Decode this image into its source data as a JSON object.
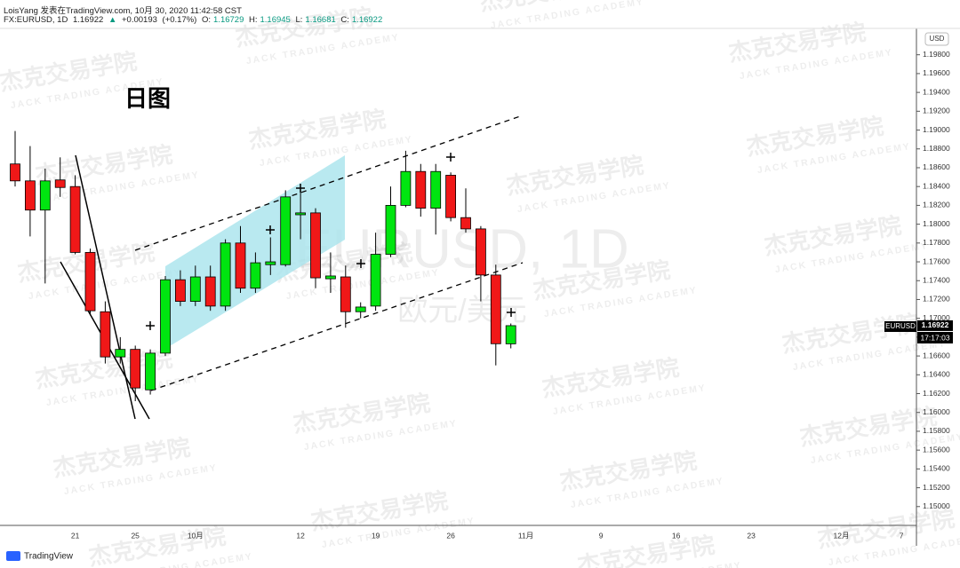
{
  "header": {
    "author_line": "LoisYang 发表在TradingView.com, 10月 30, 2020 11:42:58 CST",
    "symbol": "FX:EURUSD, 1D",
    "change": "+0.00193",
    "change_pct": "(+0.17%)",
    "o": "O:",
    "h": "H:",
    "l": "L:",
    "c": "C:"
  },
  "watermark_cn": "杰克交易学院",
  "watermark_en": "JACK TRADING ACADEMY",
  "brand": "TradingView",
  "currency": "USD",
  "price_tag_symbol": "EURUSD",
  "countdown": "17:17:03",
  "chart_data": {
    "type": "candlestick",
    "symbol_watermark": "EURUSD, 1D",
    "symbol_description": "欧元/美元",
    "annotation": "日图",
    "categories": [
      null,
      null,
      null,
      null,
      "21",
      null,
      null,
      null,
      "25",
      null,
      null,
      null,
      "10月",
      null,
      null,
      null,
      null,
      null,
      null,
      "12",
      null,
      null,
      null,
      null,
      "19",
      null,
      null,
      null,
      null,
      "26",
      null,
      null,
      null,
      null,
      "11月",
      null,
      null,
      null,
      null,
      "9",
      null,
      null,
      null,
      null,
      "16",
      null,
      null,
      null,
      null,
      "23",
      null,
      null,
      null,
      null,
      null,
      "12月",
      null,
      null,
      null,
      "7"
    ],
    "open": [
      1.1864,
      1.1846,
      1.1815,
      1.1847,
      1.184,
      1.177,
      1.1707,
      1.1659,
      1.1667,
      1.1624,
      1.1663,
      1.1741,
      1.1718,
      1.1744,
      1.1713,
      1.178,
      1.1732,
      1.1757,
      1.1757,
      1.181,
      1.1812,
      1.1742,
      1.1744,
      1.1707,
      1.1713,
      1.1768,
      1.182,
      1.1856,
      1.1817,
      1.1852,
      1.1807,
      1.1795,
      1.1746,
      1.16729,
      null,
      null,
      null,
      null,
      null,
      null,
      null,
      null,
      null,
      null,
      null,
      null,
      null,
      null,
      null,
      null,
      null,
      null,
      null,
      null,
      null,
      null,
      null,
      null,
      null,
      null
    ],
    "high": [
      1.1899,
      1.1883,
      1.1859,
      1.1871,
      1.1852,
      1.1774,
      1.1718,
      1.168,
      1.1671,
      1.1667,
      1.1745,
      1.1751,
      1.1756,
      1.1756,
      1.1784,
      1.1798,
      1.177,
      1.1786,
      1.1836,
      1.1836,
      1.1817,
      1.177,
      1.1756,
      1.1717,
      1.1791,
      1.184,
      1.1878,
      1.1864,
      1.1864,
      1.1855,
      1.1838,
      1.1798,
      1.1757,
      1.16945,
      null,
      null,
      null,
      null,
      null,
      null,
      null,
      null,
      null,
      null,
      null,
      null,
      null,
      null,
      null,
      null,
      null,
      null,
      null,
      null,
      null,
      null,
      null,
      null,
      null,
      null
    ],
    "low": [
      1.184,
      1.1787,
      1.1737,
      1.1829,
      1.1768,
      1.1704,
      1.1652,
      1.1652,
      1.1612,
      1.1619,
      1.166,
      1.1713,
      1.1713,
      1.1708,
      1.1708,
      1.1727,
      1.1727,
      1.1746,
      1.1755,
      1.1784,
      1.1732,
      1.1727,
      1.169,
      1.17,
      1.1708,
      1.1765,
      1.1818,
      1.1808,
      1.1789,
      1.1803,
      1.1791,
      1.1718,
      1.165,
      1.16681,
      null,
      null,
      null,
      null,
      null,
      null,
      null,
      null,
      null,
      null,
      null,
      null,
      null,
      null,
      null,
      null,
      null,
      null,
      null,
      null,
      null,
      null,
      null,
      null,
      null,
      null
    ],
    "close": [
      1.1846,
      1.1815,
      1.1846,
      1.1839,
      1.177,
      1.1708,
      1.1659,
      1.1667,
      1.1626,
      1.1663,
      1.1741,
      1.1718,
      1.1744,
      1.1713,
      1.178,
      1.1732,
      1.1759,
      1.176,
      1.1829,
      1.1812,
      1.1743,
      1.1745,
      1.1707,
      1.1712,
      1.1768,
      1.182,
      1.1856,
      1.1817,
      1.1856,
      1.1807,
      1.1795,
      1.1746,
      1.1673,
      1.16922,
      null,
      null,
      null,
      null,
      null,
      null,
      null,
      null,
      null,
      null,
      null,
      null,
      null,
      null,
      null,
      null,
      null,
      null,
      null,
      null,
      null,
      null,
      null,
      null,
      null,
      null
    ],
    "up_color": "#00e510",
    "down_color": "#f01818",
    "grid": false,
    "ylim": [
      1.148,
      1.2008
    ],
    "yticks": [
      {
        "value": 1.15,
        "label": "1.15000"
      },
      {
        "value": 1.152,
        "label": "1.15200"
      },
      {
        "value": 1.154,
        "label": "1.15400"
      },
      {
        "value": 1.156,
        "label": "1.15600"
      },
      {
        "value": 1.158,
        "label": "1.15800"
      },
      {
        "value": 1.16,
        "label": "1.16000"
      },
      {
        "value": 1.162,
        "label": "1.16200"
      },
      {
        "value": 1.164,
        "label": "1.16400"
      },
      {
        "value": 1.166,
        "label": "1.16600"
      },
      {
        "value": 1.168,
        "label": "1.16800"
      },
      {
        "value": 1.17,
        "label": "1.17000"
      },
      {
        "value": 1.172,
        "label": "1.17200"
      },
      {
        "value": 1.174,
        "label": "1.17400"
      },
      {
        "value": 1.176,
        "label": "1.17600"
      },
      {
        "value": 1.178,
        "label": "1.17800"
      },
      {
        "value": 1.18,
        "label": "1.18000"
      },
      {
        "value": 1.182,
        "label": "1.18200"
      },
      {
        "value": 1.184,
        "label": "1.18400"
      },
      {
        "value": 1.186,
        "label": "1.18600"
      },
      {
        "value": 1.188,
        "label": "1.18800"
      },
      {
        "value": 1.19,
        "label": "1.19000"
      },
      {
        "value": 1.192,
        "label": "1.19200"
      },
      {
        "value": 1.194,
        "label": "1.19400"
      },
      {
        "value": 1.196,
        "label": "1.19600"
      },
      {
        "value": 1.198,
        "label": "1.19800"
      }
    ]
  }
}
